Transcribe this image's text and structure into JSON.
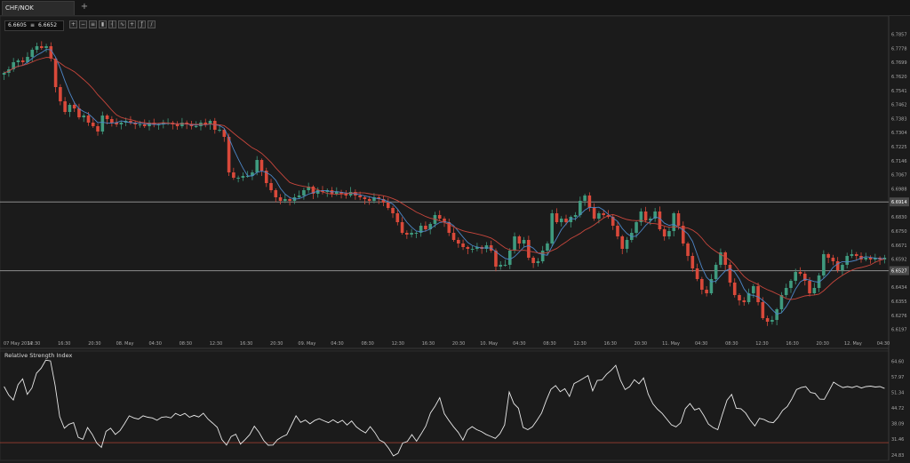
{
  "tab": {
    "symbol": "CHF/NOK",
    "add_label": "+"
  },
  "price_badge": {
    "bid": "6.6605",
    "separator": "≡",
    "ask": "6.6652"
  },
  "toolbar_icons": [
    "zoom-in-icon",
    "zoom-out-icon",
    "chart-type-icon",
    "candles-icon",
    "bars-icon",
    "line-icon",
    "crosshair-icon",
    "indicators-icon",
    "draw-icon"
  ],
  "colors": {
    "background": "#1b1b1b",
    "bull": "#3f9a7e",
    "bear": "#d9493a",
    "ma_fast": "#4d86c7",
    "ma_slow": "#c8463c",
    "rsi_line": "#e8e8e8",
    "level": "#8c8c8c"
  },
  "chart_data": [
    {
      "type": "candlestick",
      "symbol": "CHF/NOK",
      "y_ticks": [
        "6.7857",
        "6.7778",
        "6.7699",
        "6.7620",
        "6.7541",
        "6.7462",
        "6.7383",
        "6.7304",
        "6.7225",
        "6.7146",
        "6.7067",
        "6.6988",
        "6.6909",
        "6.6830",
        "6.6750",
        "6.6671",
        "6.6592",
        "6.6513",
        "6.6434",
        "6.6355",
        "6.6276",
        "6.6197"
      ],
      "ylim": [
        6.615,
        6.79
      ],
      "x_labels": [
        "07 May 2014",
        "12:30",
        "16:30",
        "20:30",
        "08. May",
        "04:30",
        "08:30",
        "12:30",
        "16:30",
        "20:30",
        "09. May",
        "04:30",
        "08:30",
        "12:30",
        "16:30",
        "20:30",
        "10. May",
        "04:30",
        "08:30",
        "12:30",
        "16:30",
        "20:30",
        "11. May",
        "04:30",
        "08:30",
        "12:30",
        "16:30",
        "20:30",
        "12. May",
        "04:30"
      ],
      "levels": [
        {
          "value": 6.6914,
          "label": "6.6914"
        },
        {
          "value": 6.6527,
          "label": "6.6527"
        }
      ],
      "close": [
        6.764,
        6.766,
        6.77,
        6.771,
        6.77,
        6.773,
        6.777,
        6.779,
        6.778,
        6.779,
        6.772,
        6.756,
        6.748,
        6.742,
        6.746,
        6.744,
        6.739,
        6.74,
        6.736,
        6.734,
        6.731,
        6.74,
        6.738,
        6.736,
        6.735,
        6.736,
        6.737,
        6.736,
        6.735,
        6.735,
        6.734,
        6.736,
        6.735,
        6.735,
        6.736,
        6.736,
        6.735,
        6.734,
        6.736,
        6.735,
        6.734,
        6.734,
        6.736,
        6.735,
        6.737,
        6.732,
        6.732,
        6.728,
        6.708,
        6.705,
        6.705,
        6.706,
        6.706,
        6.708,
        6.715,
        6.709,
        6.702,
        6.698,
        6.694,
        6.692,
        6.693,
        6.692,
        6.694,
        6.695,
        6.698,
        6.7,
        6.696,
        6.698,
        6.697,
        6.698,
        6.696,
        6.697,
        6.696,
        6.695,
        6.697,
        6.695,
        6.694,
        6.693,
        6.692,
        6.694,
        6.693,
        6.691,
        6.688,
        6.685,
        6.68,
        6.674,
        6.673,
        6.674,
        6.674,
        6.678,
        6.676,
        6.679,
        6.684,
        6.682,
        6.68,
        6.674,
        6.67,
        6.668,
        6.666,
        6.665,
        6.665,
        6.666,
        6.665,
        6.667,
        6.664,
        6.655,
        6.656,
        6.656,
        6.664,
        6.672,
        6.668,
        6.67,
        6.66,
        6.657,
        6.658,
        6.664,
        6.668,
        6.685,
        6.68,
        6.682,
        6.68,
        6.683,
        6.684,
        6.692,
        6.695,
        6.688,
        6.682,
        6.685,
        6.684,
        6.683,
        6.678,
        6.672,
        6.665,
        6.67,
        6.674,
        6.68,
        6.686,
        6.681,
        6.682,
        6.686,
        6.676,
        6.672,
        6.675,
        6.685,
        6.678,
        6.668,
        6.661,
        6.654,
        6.648,
        6.642,
        6.64,
        6.648,
        6.656,
        6.663,
        6.656,
        6.646,
        6.639,
        6.636,
        6.635,
        6.64,
        6.644,
        6.635,
        6.626,
        6.624,
        6.625,
        6.631,
        6.639,
        6.643,
        6.647,
        6.652,
        6.651,
        6.647,
        6.64,
        6.643,
        6.65,
        6.662,
        6.66,
        6.658,
        6.653,
        6.656,
        6.661,
        6.662,
        6.661,
        6.659,
        6.66,
        6.659,
        6.66,
        6.659,
        6.66
      ],
      "open_first": 6.763,
      "series": [
        {
          "name": "",
          "kind": "ma_fast",
          "period": 5
        },
        {
          "name": "",
          "kind": "ma_slow",
          "period": 14
        }
      ]
    },
    {
      "type": "line",
      "title": "Relative Strength Index",
      "y_ticks": [
        "64.60",
        "57.97",
        "51.34",
        "44.72",
        "38.09",
        "31.46",
        "24.83"
      ],
      "ylim": [
        22.5,
        67.0
      ],
      "levels": [
        {
          "value": 70,
          "label": ""
        },
        {
          "value": 30,
          "label": ""
        }
      ],
      "values": [
        53.8,
        50.2,
        48.1,
        54.6,
        57.1,
        50.5,
        53.2,
        59.5,
        61.6,
        65.0,
        64.7,
        54.4,
        41.0,
        36.1,
        37.8,
        38.5,
        32.3,
        31.4,
        36.4,
        33.6,
        29.8,
        28.0,
        34.8,
        36.1,
        33.5,
        35.1,
        38.1,
        41.4,
        40.5,
        40.0,
        41.4,
        40.8,
        40.5,
        39.5,
        40.8,
        41.0,
        40.5,
        42.4,
        41.5,
        42.4,
        40.8,
        41.6,
        40.9,
        42.5,
        40.0,
        38.3,
        36.5,
        31.3,
        29.0,
        32.6,
        33.6,
        29.4,
        31.3,
        33.4,
        37.0,
        34.4,
        31.0,
        28.9,
        29.0,
        31.3,
        32.5,
        33.4,
        37.4,
        41.4,
        38.6,
        39.6,
        38.0,
        39.4,
        40.2,
        39.3,
        38.5,
        39.7,
        38.4,
        39.5,
        37.5,
        39.2,
        36.7,
        35.3,
        34.1,
        36.8,
        34.3,
        31.1,
        30.1,
        27.6,
        24.4,
        25.5,
        29.8,
        30.5,
        33.4,
        30.6,
        33.7,
        37.0,
        42.6,
        45.5,
        49.1,
        42.3,
        39.4,
        36.7,
        34.4,
        31.1,
        35.4,
        36.8,
        35.5,
        34.7,
        33.5,
        32.7,
        31.8,
        33.8,
        37.5,
        51.5,
        46.6,
        44.6,
        36.5,
        35.5,
        36.7,
        39.5,
        42.6,
        47.9,
        52.6,
        54.2,
        51.6,
        52.9,
        49.6,
        55.1,
        56.1,
        57.3,
        58.5,
        52.0,
        56.4,
        56.6,
        59.0,
        60.7,
        62.8,
        56.5,
        52.5,
        53.8,
        56.7,
        55.0,
        57.5,
        50.6,
        46.5,
        44.2,
        42.4,
        40.0,
        37.6,
        36.7,
        38.4,
        44.4,
        46.6,
        43.9,
        44.6,
        41.5,
        37.9,
        36.4,
        35.5,
        42.0,
        48.0,
        50.5,
        44.6,
        44.4,
        42.6,
        39.5,
        37.1,
        40.3,
        39.8,
        38.8,
        38.5,
        40.7,
        43.7,
        45.3,
        48.6,
        52.5,
        53.4,
        53.8,
        51.3,
        50.9,
        48.5,
        48.4,
        52.0,
        55.7,
        54.4,
        53.4,
        53.8,
        53.4,
        54.0,
        53.2,
        53.8,
        54.0,
        53.6,
        53.8,
        53.0
      ]
    }
  ]
}
